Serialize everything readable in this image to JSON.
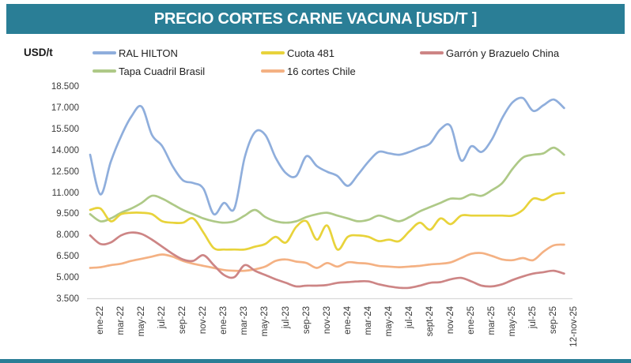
{
  "title_bar": {
    "text": "PRECIO CORTES CARNE VACUNA [USD/T ]",
    "bg_color": "#2A7E96",
    "text_color": "#FFFFFF"
  },
  "y_axis_unit_label": "USD/t",
  "legend": {
    "rows": [
      [
        "RAL HILTON",
        "Cuota 481",
        "Garrón y Brazuelo China"
      ],
      [
        "Tapa Cuadril Brasil",
        "16 cortes Chile"
      ]
    ]
  },
  "chart_data": {
    "type": "line",
    "title": "PRECIO CORTES CARNE VACUNA [USD/T ]",
    "ylabel": "USD/t",
    "ylim": [
      3500,
      18500
    ],
    "grid": false,
    "legend_position": "top",
    "axis_line_color": "#D9D9D9",
    "y_tick_labels": [
      "18.500",
      "17.000",
      "15.500",
      "14.000",
      "12.500",
      "11.000",
      "9.500",
      "8.000",
      "6.500",
      "5.000",
      "3.500"
    ],
    "y_tick_values": [
      18500,
      17000,
      15500,
      14000,
      12500,
      11000,
      9500,
      8000,
      6500,
      5000,
      3500
    ],
    "x_tick_labels": [
      "ene-22",
      "mar-22",
      "may-22",
      "jul-22",
      "sep-22",
      "nov-22",
      "ene-23",
      "mar-23",
      "may-23",
      "jul-23",
      "sep-23",
      "nov-23",
      "ene-24",
      "mar-24",
      "may-24",
      "jul-24",
      "sept-24",
      "nov-24",
      "ene-25",
      "mar-25",
      "may-25",
      "jul-25",
      "sep-25",
      "12-nov-25"
    ],
    "x": [
      "ene-22",
      "feb-22",
      "mar-22",
      "abr-22",
      "may-22",
      "jun-22",
      "jul-22",
      "ago-22",
      "sep-22",
      "oct-22",
      "nov-22",
      "dic-22",
      "ene-23",
      "feb-23",
      "mar-23",
      "abr-23",
      "may-23",
      "jun-23",
      "jul-23",
      "ago-23",
      "sep-23",
      "oct-23",
      "nov-23",
      "dic-23",
      "ene-24",
      "feb-24",
      "mar-24",
      "abr-24",
      "may-24",
      "jun-24",
      "jul-24",
      "ago-24",
      "sept-24",
      "oct-24",
      "nov-24",
      "dic-24",
      "ene-25",
      "feb-25",
      "mar-25",
      "abr-25",
      "may-25",
      "jun-25",
      "jul-25",
      "ago-25",
      "sep-25",
      "oct-25",
      "12-nov-25"
    ],
    "series": [
      {
        "name": "RAL HILTON",
        "color": "#8FAEDC",
        "values": [
          13700,
          10900,
          13200,
          15000,
          16400,
          17100,
          15100,
          14300,
          12900,
          11900,
          11700,
          11300,
          9500,
          10300,
          9900,
          13500,
          15300,
          15100,
          13500,
          12400,
          12200,
          13600,
          12900,
          12500,
          12200,
          11500,
          12300,
          13200,
          13900,
          13800,
          13700,
          13900,
          14200,
          14500,
          15500,
          15700,
          13300,
          14300,
          13900,
          14800,
          16300,
          17400,
          17700,
          16800,
          17200,
          17600,
          17000
        ]
      },
      {
        "name": "Tapa Cuadril Brasil",
        "color": "#AEC987",
        "values": [
          9500,
          9000,
          9200,
          9600,
          9900,
          10300,
          10800,
          10600,
          10200,
          9800,
          9500,
          9200,
          9000,
          8900,
          9000,
          9400,
          9800,
          9300,
          9000,
          8900,
          9000,
          9300,
          9500,
          9600,
          9400,
          9200,
          9000,
          9100,
          9400,
          9200,
          9000,
          9300,
          9700,
          10000,
          10300,
          10600,
          10600,
          10900,
          10800,
          11200,
          11700,
          12700,
          13500,
          13700,
          13800,
          14200,
          13700
        ]
      },
      {
        "name": "Cuota 481",
        "color": "#E8D33B",
        "values": [
          9800,
          9900,
          9000,
          9500,
          9600,
          9600,
          9500,
          9000,
          8900,
          8900,
          9200,
          8200,
          7100,
          7000,
          7000,
          7000,
          7200,
          7400,
          7900,
          7500,
          8600,
          9000,
          7700,
          8700,
          7000,
          7900,
          8000,
          7900,
          7600,
          7700,
          7600,
          8300,
          8900,
          8400,
          9200,
          8800,
          9400,
          9400,
          9400,
          9400,
          9400,
          9400,
          9800,
          10600,
          10500,
          10900,
          11000
        ]
      },
      {
        "name": "16 cortes Chile",
        "color": "#F4B183",
        "values": [
          5700,
          5750,
          5900,
          6000,
          6200,
          6350,
          6500,
          6650,
          6500,
          6200,
          6000,
          5850,
          5700,
          5550,
          5500,
          5500,
          5600,
          5800,
          6200,
          6300,
          6150,
          6050,
          5700,
          6050,
          5800,
          6100,
          6050,
          6000,
          5850,
          5800,
          5750,
          5800,
          5850,
          5950,
          6000,
          6100,
          6400,
          6700,
          6750,
          6550,
          6300,
          6250,
          6400,
          6250,
          6850,
          7300,
          7350
        ]
      },
      {
        "name": "Garrón y Brazuelo China",
        "color": "#CD8585",
        "values": [
          8000,
          7400,
          7500,
          8000,
          8200,
          8100,
          7700,
          7200,
          6700,
          6300,
          6200,
          6600,
          5900,
          5200,
          5050,
          5900,
          5500,
          5200,
          4900,
          4650,
          4400,
          4450,
          4450,
          4500,
          4650,
          4700,
          4750,
          4750,
          4550,
          4400,
          4300,
          4300,
          4450,
          4650,
          4700,
          4900,
          5000,
          4750,
          4450,
          4400,
          4550,
          4850,
          5100,
          5300,
          5400,
          5500,
          5300
        ]
      }
    ]
  }
}
